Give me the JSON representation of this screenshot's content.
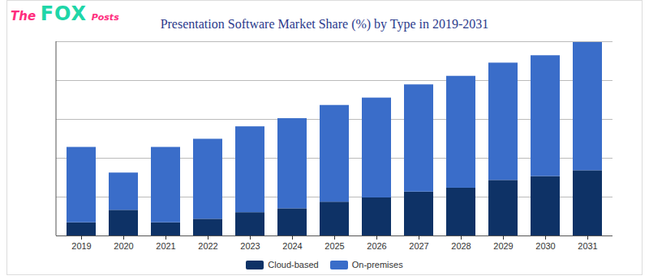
{
  "watermark": [
    "The",
    "FOX",
    "Posts"
  ],
  "chart_data": {
    "type": "bar",
    "title": "Presentation Software Market Share (%) by Type in 2019-2031",
    "categories": [
      "2019",
      "2020",
      "2021",
      "2022",
      "2023",
      "2024",
      "2025",
      "2026",
      "2027",
      "2028",
      "2029",
      "2030",
      "2031"
    ],
    "series": [
      {
        "name": "Cloud-based",
        "color": "#0e3266",
        "values": [
          3.4,
          6.6,
          3.4,
          4.3,
          6.0,
          7.0,
          8.7,
          9.8,
          11.3,
          12.3,
          14.3,
          15.3,
          16.8
        ]
      },
      {
        "name": "On-premises",
        "color": "#3a6dc9",
        "values": [
          19.4,
          9.6,
          19.4,
          20.6,
          22.1,
          23.2,
          24.9,
          25.7,
          27.6,
          28.8,
          30.2,
          31.1,
          33.0
        ]
      }
    ],
    "stacked": true,
    "ylim": [
      0,
      50
    ],
    "yticks": [
      0,
      10,
      20,
      30,
      40,
      50
    ],
    "grid": true,
    "tick_labels": "x",
    "legend": "bottom"
  }
}
